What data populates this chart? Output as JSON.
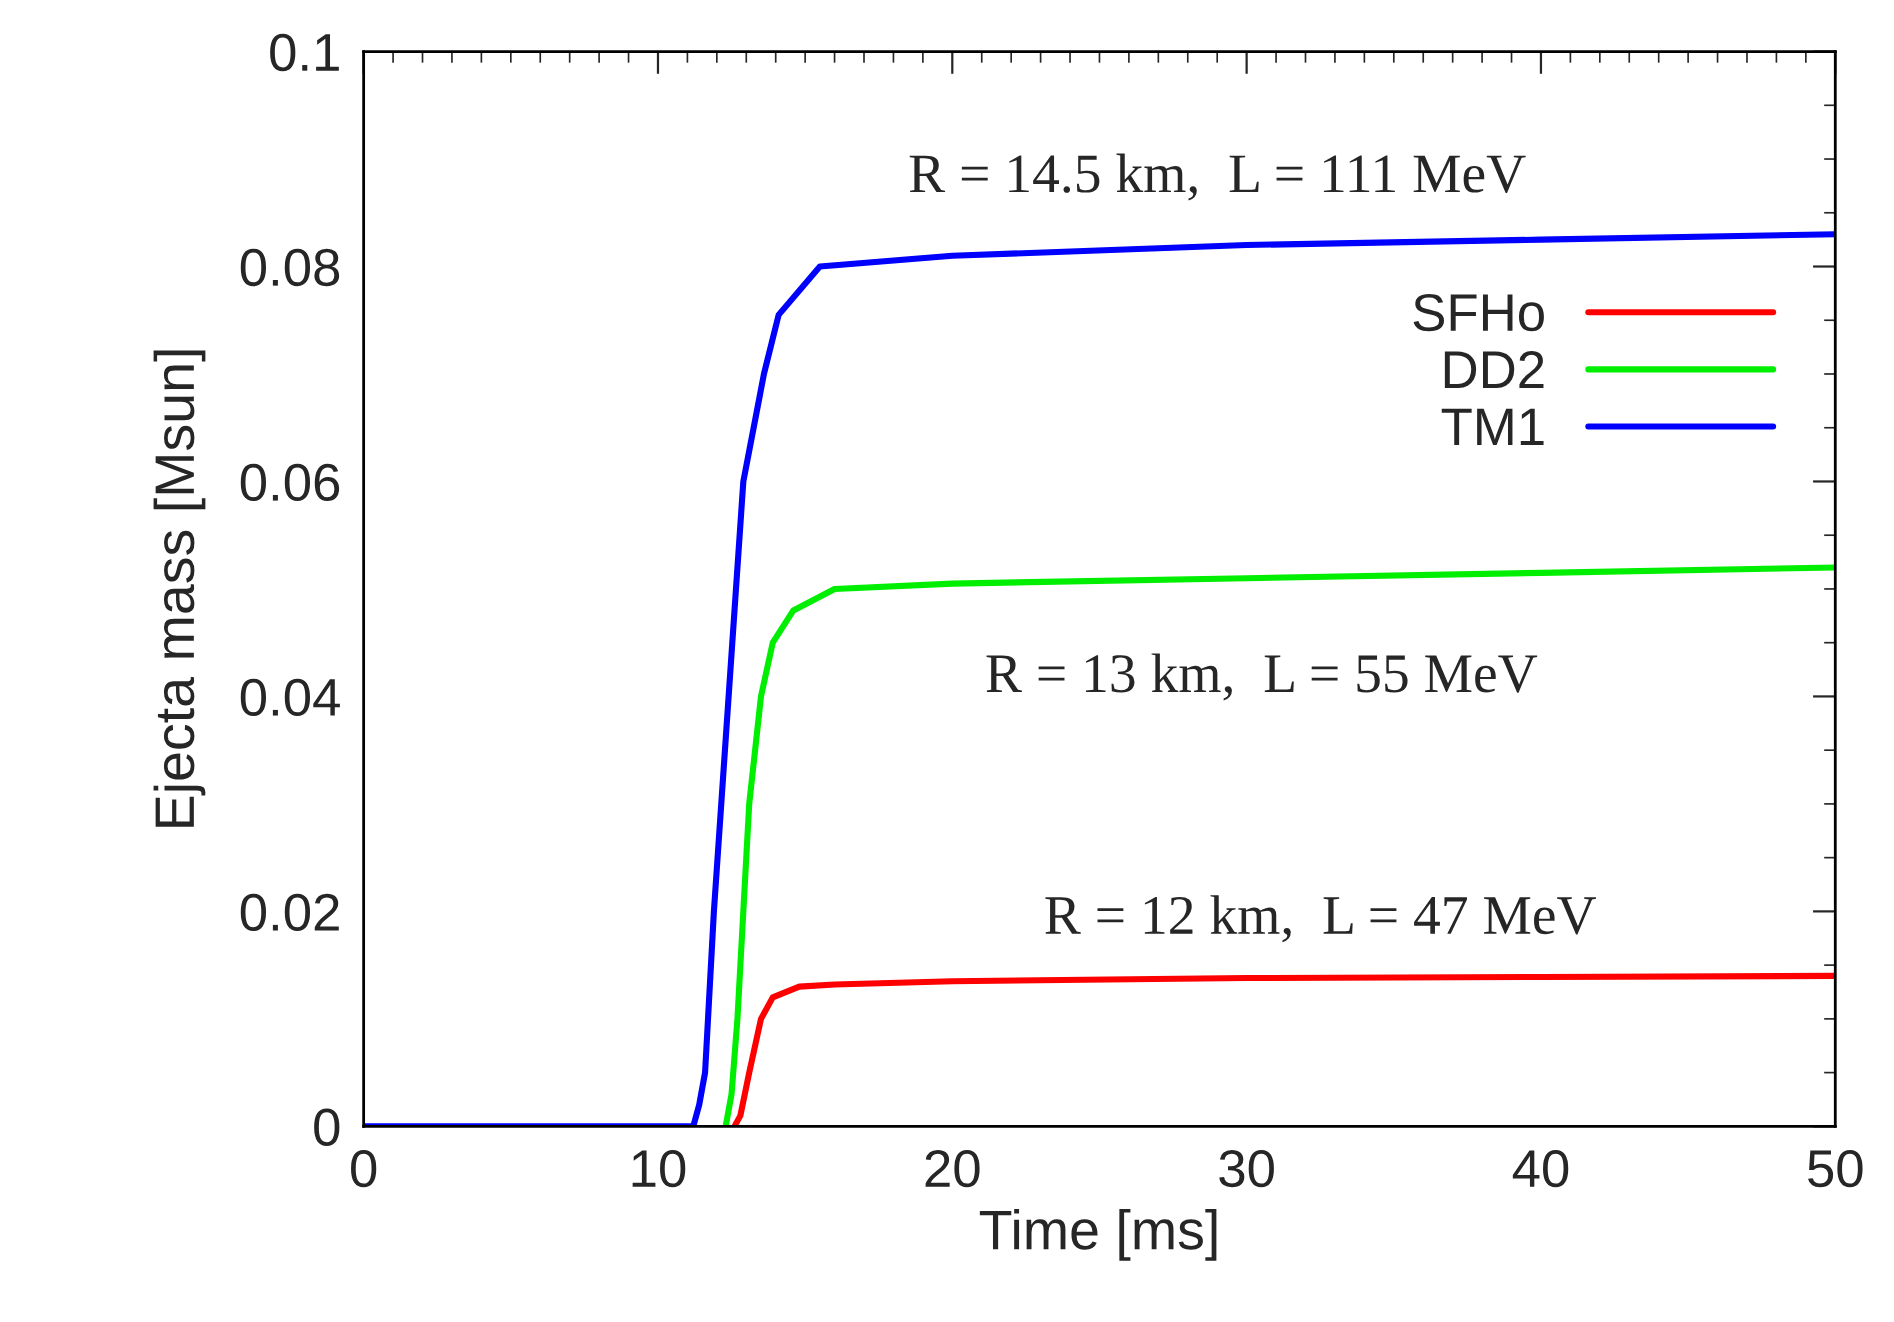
{
  "chart_data": {
    "type": "line",
    "xlabel": "Time [ms]",
    "ylabel": "Ejecta mass [Msun]",
    "xlim": [
      0,
      50
    ],
    "ylim": [
      0,
      0.1
    ],
    "xticks": [
      0,
      10,
      20,
      30,
      40,
      50
    ],
    "yticks": [
      0,
      0.02,
      0.04,
      0.06,
      0.08,
      {
        "value": 0.1,
        "label": "0.1"
      }
    ],
    "legend": "top right",
    "grid": false,
    "marker": "none",
    "line_style": "solid",
    "series": [
      {
        "name": "SFHo",
        "color": "#ff0000",
        "x": [
          12.6,
          12.8,
          13.1,
          13.5,
          13.9,
          14.8,
          16,
          20,
          30,
          40,
          50
        ],
        "values": [
          0,
          0.001,
          0.005,
          0.01,
          0.012,
          0.013,
          0.0132,
          0.0135,
          0.0138,
          0.0139,
          0.014
        ]
      },
      {
        "name": "DD2",
        "color": "#00ee00",
        "x": [
          12.3,
          12.5,
          12.7,
          12.9,
          13.1,
          13.5,
          13.9,
          14.6,
          16,
          20,
          30,
          40,
          50
        ],
        "values": [
          0,
          0.003,
          0.01,
          0.02,
          0.03,
          0.04,
          0.045,
          0.048,
          0.05,
          0.0505,
          0.051,
          0.0515,
          0.052
        ]
      },
      {
        "name": "TM1",
        "color": "#0000ff",
        "x": [
          0,
          5,
          10,
          11.2,
          11.4,
          11.6,
          11.9,
          12.4,
          12.9,
          13.6,
          14.1,
          15.5,
          20,
          30,
          40,
          50
        ],
        "values": [
          0,
          0,
          0,
          0,
          0.002,
          0.005,
          0.02,
          0.04,
          0.06,
          0.07,
          0.0755,
          0.08,
          0.081,
          0.082,
          0.0825,
          0.083
        ]
      }
    ],
    "annotations": [
      "R = 14.5 km,  L = 111 MeV",
      "R = 13 km,  L = 55 MeV",
      "R = 12 km,  L = 47 MeV"
    ]
  }
}
